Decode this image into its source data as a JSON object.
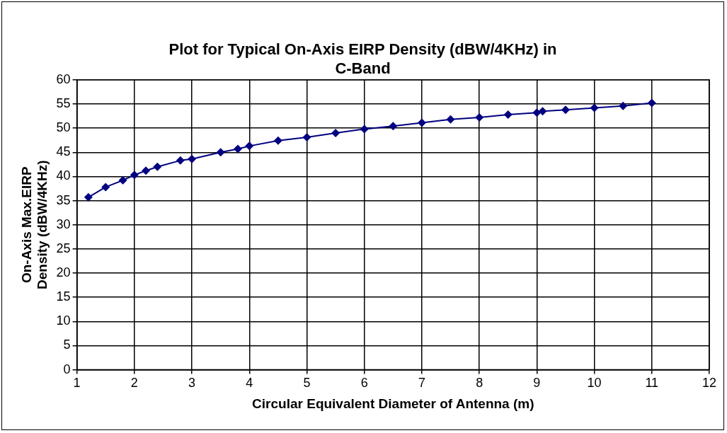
{
  "chart_data": {
    "type": "line",
    "title": "Plot for Typical On-Axis EIRP Density (dBW/4KHz) in C-Band",
    "xlabel": "Circular Equivalent Diameter of Antenna (m)",
    "ylabel": "On-Axis Max.EIRP Density (dBW/4KHz)",
    "x": [
      1.2,
      1.5,
      1.8,
      2.0,
      2.2,
      2.4,
      2.8,
      3.0,
      3.5,
      3.8,
      4.0,
      4.5,
      5,
      5.5,
      6,
      6.5,
      7,
      7.5,
      8,
      8.5,
      9,
      9.1,
      9.5,
      10,
      10.5,
      11
    ],
    "series": [
      {
        "color": "#000080",
        "values": [
          35.7,
          37.8,
          39.2,
          40.3,
          41.2,
          42.0,
          43.3,
          43.6,
          45.0,
          45.7,
          46.3,
          47.4,
          48.1,
          49.0,
          49.8,
          50.4,
          51.1,
          51.8,
          52.2,
          52.8,
          53.2,
          53.5,
          53.8,
          54.2,
          54.6,
          55.2
        ]
      }
    ],
    "xlim": [
      1,
      12
    ],
    "xticks": [
      1,
      2,
      3,
      4,
      5,
      6,
      7,
      8,
      9,
      10,
      11,
      12
    ],
    "ylim": [
      0,
      60
    ],
    "yticks": [
      0,
      5,
      10,
      15,
      20,
      25,
      30,
      35,
      40,
      45,
      50,
      55,
      60
    ],
    "grid": true,
    "legend": false,
    "marker": "diamond",
    "line_style": "solid"
  }
}
